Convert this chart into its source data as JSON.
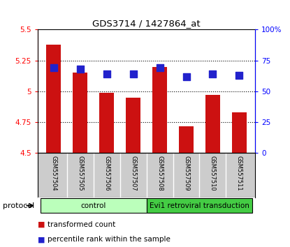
{
  "title": "GDS3714 / 1427864_at",
  "samples": [
    "GSM557504",
    "GSM557505",
    "GSM557506",
    "GSM557507",
    "GSM557508",
    "GSM557509",
    "GSM557510",
    "GSM557511"
  ],
  "transformed_counts": [
    5.38,
    5.15,
    4.99,
    4.95,
    5.2,
    4.72,
    4.97,
    4.83
  ],
  "percentile_ranks": [
    69,
    68,
    64,
    64,
    69,
    62,
    64,
    63
  ],
  "left_ylim": [
    4.5,
    5.5
  ],
  "right_ylim": [
    0,
    100
  ],
  "left_yticks": [
    4.5,
    4.75,
    5.0,
    5.25,
    5.5
  ],
  "right_yticks": [
    0,
    25,
    50,
    75,
    100
  ],
  "left_ytick_labels": [
    "4.5",
    "4.75",
    "5",
    "5.25",
    "5.5"
  ],
  "right_ytick_labels": [
    "0",
    "25",
    "50",
    "75",
    "100%"
  ],
  "bar_color": "#cc1111",
  "marker_color": "#2222cc",
  "bar_bottom": 4.5,
  "dotted_grid_values": [
    4.75,
    5.0,
    5.25
  ],
  "protocol_groups": [
    {
      "label": "control",
      "start": 0,
      "end": 4,
      "color": "#bbffbb"
    },
    {
      "label": "Evi1 retroviral transduction",
      "start": 4,
      "end": 8,
      "color": "#44cc44"
    }
  ],
  "protocol_label": "protocol",
  "legend_items": [
    {
      "label": "transformed count",
      "color": "#cc1111"
    },
    {
      "label": "percentile rank within the sample",
      "color": "#2222cc"
    }
  ],
  "bg_color": "#ffffff",
  "plot_bg_color": "#ffffff",
  "label_area_color": "#cccccc",
  "bar_width": 0.55,
  "marker_size": 55
}
